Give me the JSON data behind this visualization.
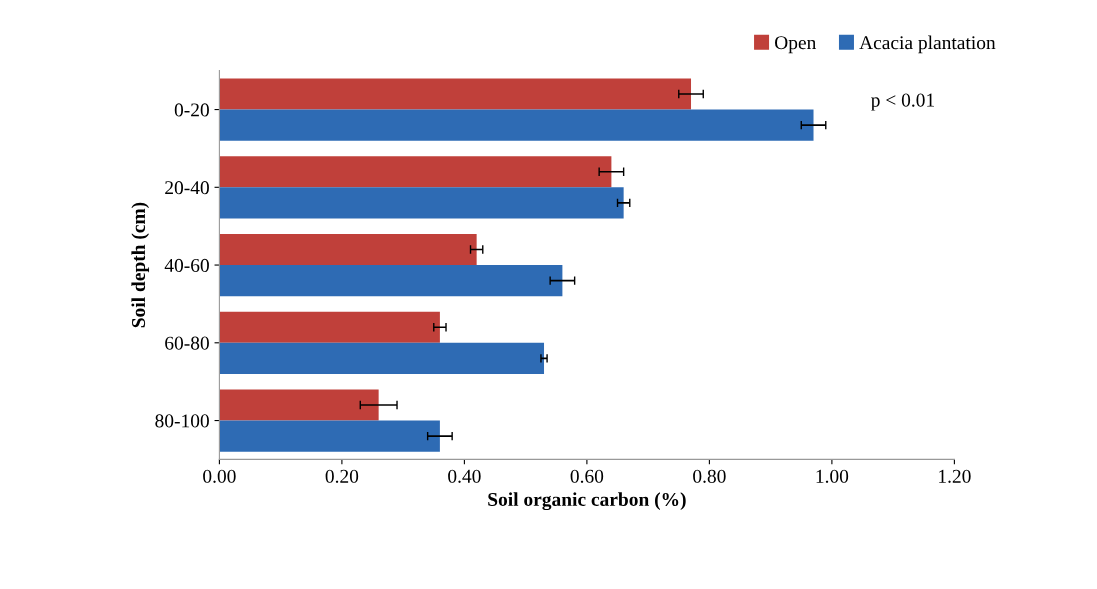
{
  "chart_data": {
    "type": "bar",
    "orientation": "horizontal",
    "xlabel": "Soil organic carbon (%)",
    "ylabel": "Soil depth (cm)",
    "categories": [
      "0-20",
      "20-40",
      "40-60",
      "60-80",
      "80-100"
    ],
    "series": [
      {
        "name": "Open",
        "color": "#c0403a",
        "values": [
          0.77,
          0.64,
          0.42,
          0.36,
          0.26
        ],
        "errors": [
          0.02,
          0.02,
          0.01,
          0.01,
          0.03
        ]
      },
      {
        "name": "Acacia plantation",
        "color": "#2e6bb4",
        "values": [
          0.97,
          0.66,
          0.56,
          0.53,
          0.36
        ],
        "errors": [
          0.02,
          0.01,
          0.02,
          0.005,
          0.02
        ]
      }
    ],
    "xlim": [
      0,
      1.2
    ],
    "xticks": [
      {
        "value": 0,
        "label": "0.00"
      },
      {
        "value": 0.2,
        "label": "0.20"
      },
      {
        "value": 0.4,
        "label": "0.40"
      },
      {
        "value": 0.6,
        "label": "0.60"
      },
      {
        "value": 0.8,
        "label": "0.80"
      },
      {
        "value": 1.0,
        "label": "1.00"
      },
      {
        "value": 1.2,
        "label": "1.20"
      }
    ],
    "annotations": [
      "p < 0.01"
    ],
    "legend": "top right",
    "grid": false
  }
}
